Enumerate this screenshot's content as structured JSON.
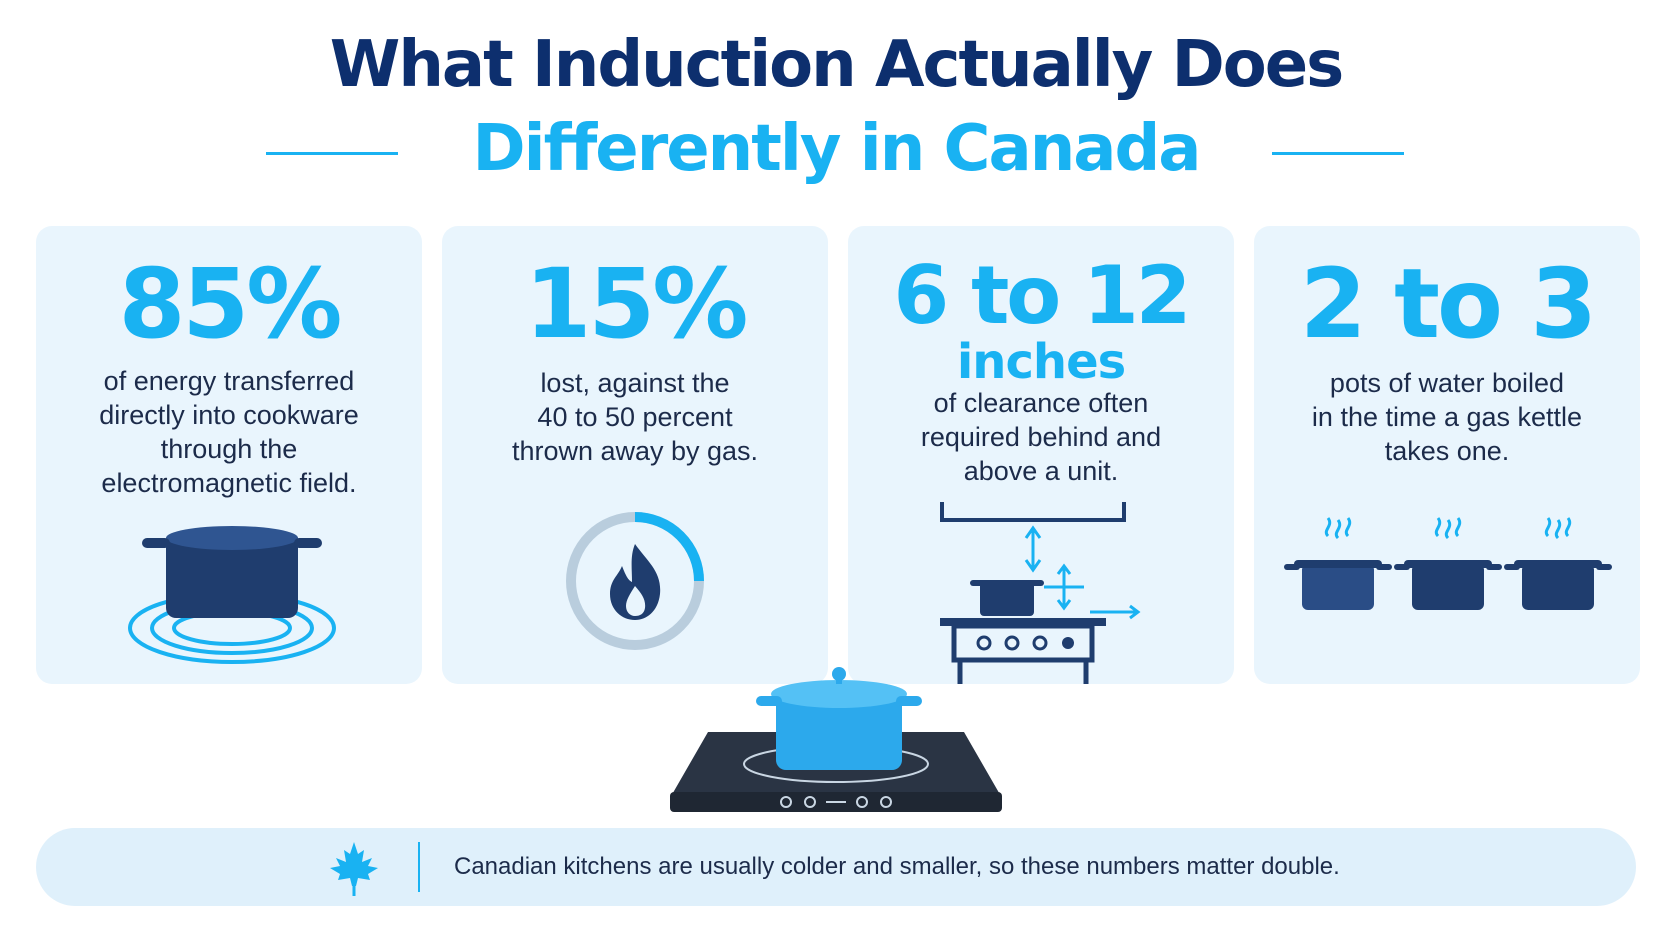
{
  "header": {
    "title": "What Induction Actually Does",
    "subtitle": "Differently in Canada"
  },
  "cards": [
    {
      "stat": "85%",
      "lines": [
        "of energy transferred",
        "directly into cookware",
        "through the",
        "electromagnetic field."
      ],
      "icon": "pot-on-induction-rings-icon"
    },
    {
      "stat": "15%",
      "lines": [
        "lost, against the",
        "40 to 50 percent",
        "thrown away by gas."
      ],
      "icon": "gas-flame-gauge-icon"
    },
    {
      "stat": "6 to 12",
      "stat_unit": "inches",
      "lines": [
        "of clearance often",
        "required behind and",
        "above a unit."
      ],
      "icon": "stove-clearance-icon"
    },
    {
      "stat": "2 to 3",
      "lines": [
        "pots of water boiled",
        "in the time a gas kettle",
        "takes one."
      ],
      "icon": "three-boiling-pots-icon"
    }
  ],
  "footer": {
    "icon": "maple-leaf-icon",
    "note": "Canadian kitchens are usually colder and smaller, so these numbers matter double."
  },
  "colors": {
    "navy": "#0d2f6e",
    "accent": "#19b2f2",
    "card_bg": "#e9f5fd",
    "pot": "#1f3d6e"
  }
}
